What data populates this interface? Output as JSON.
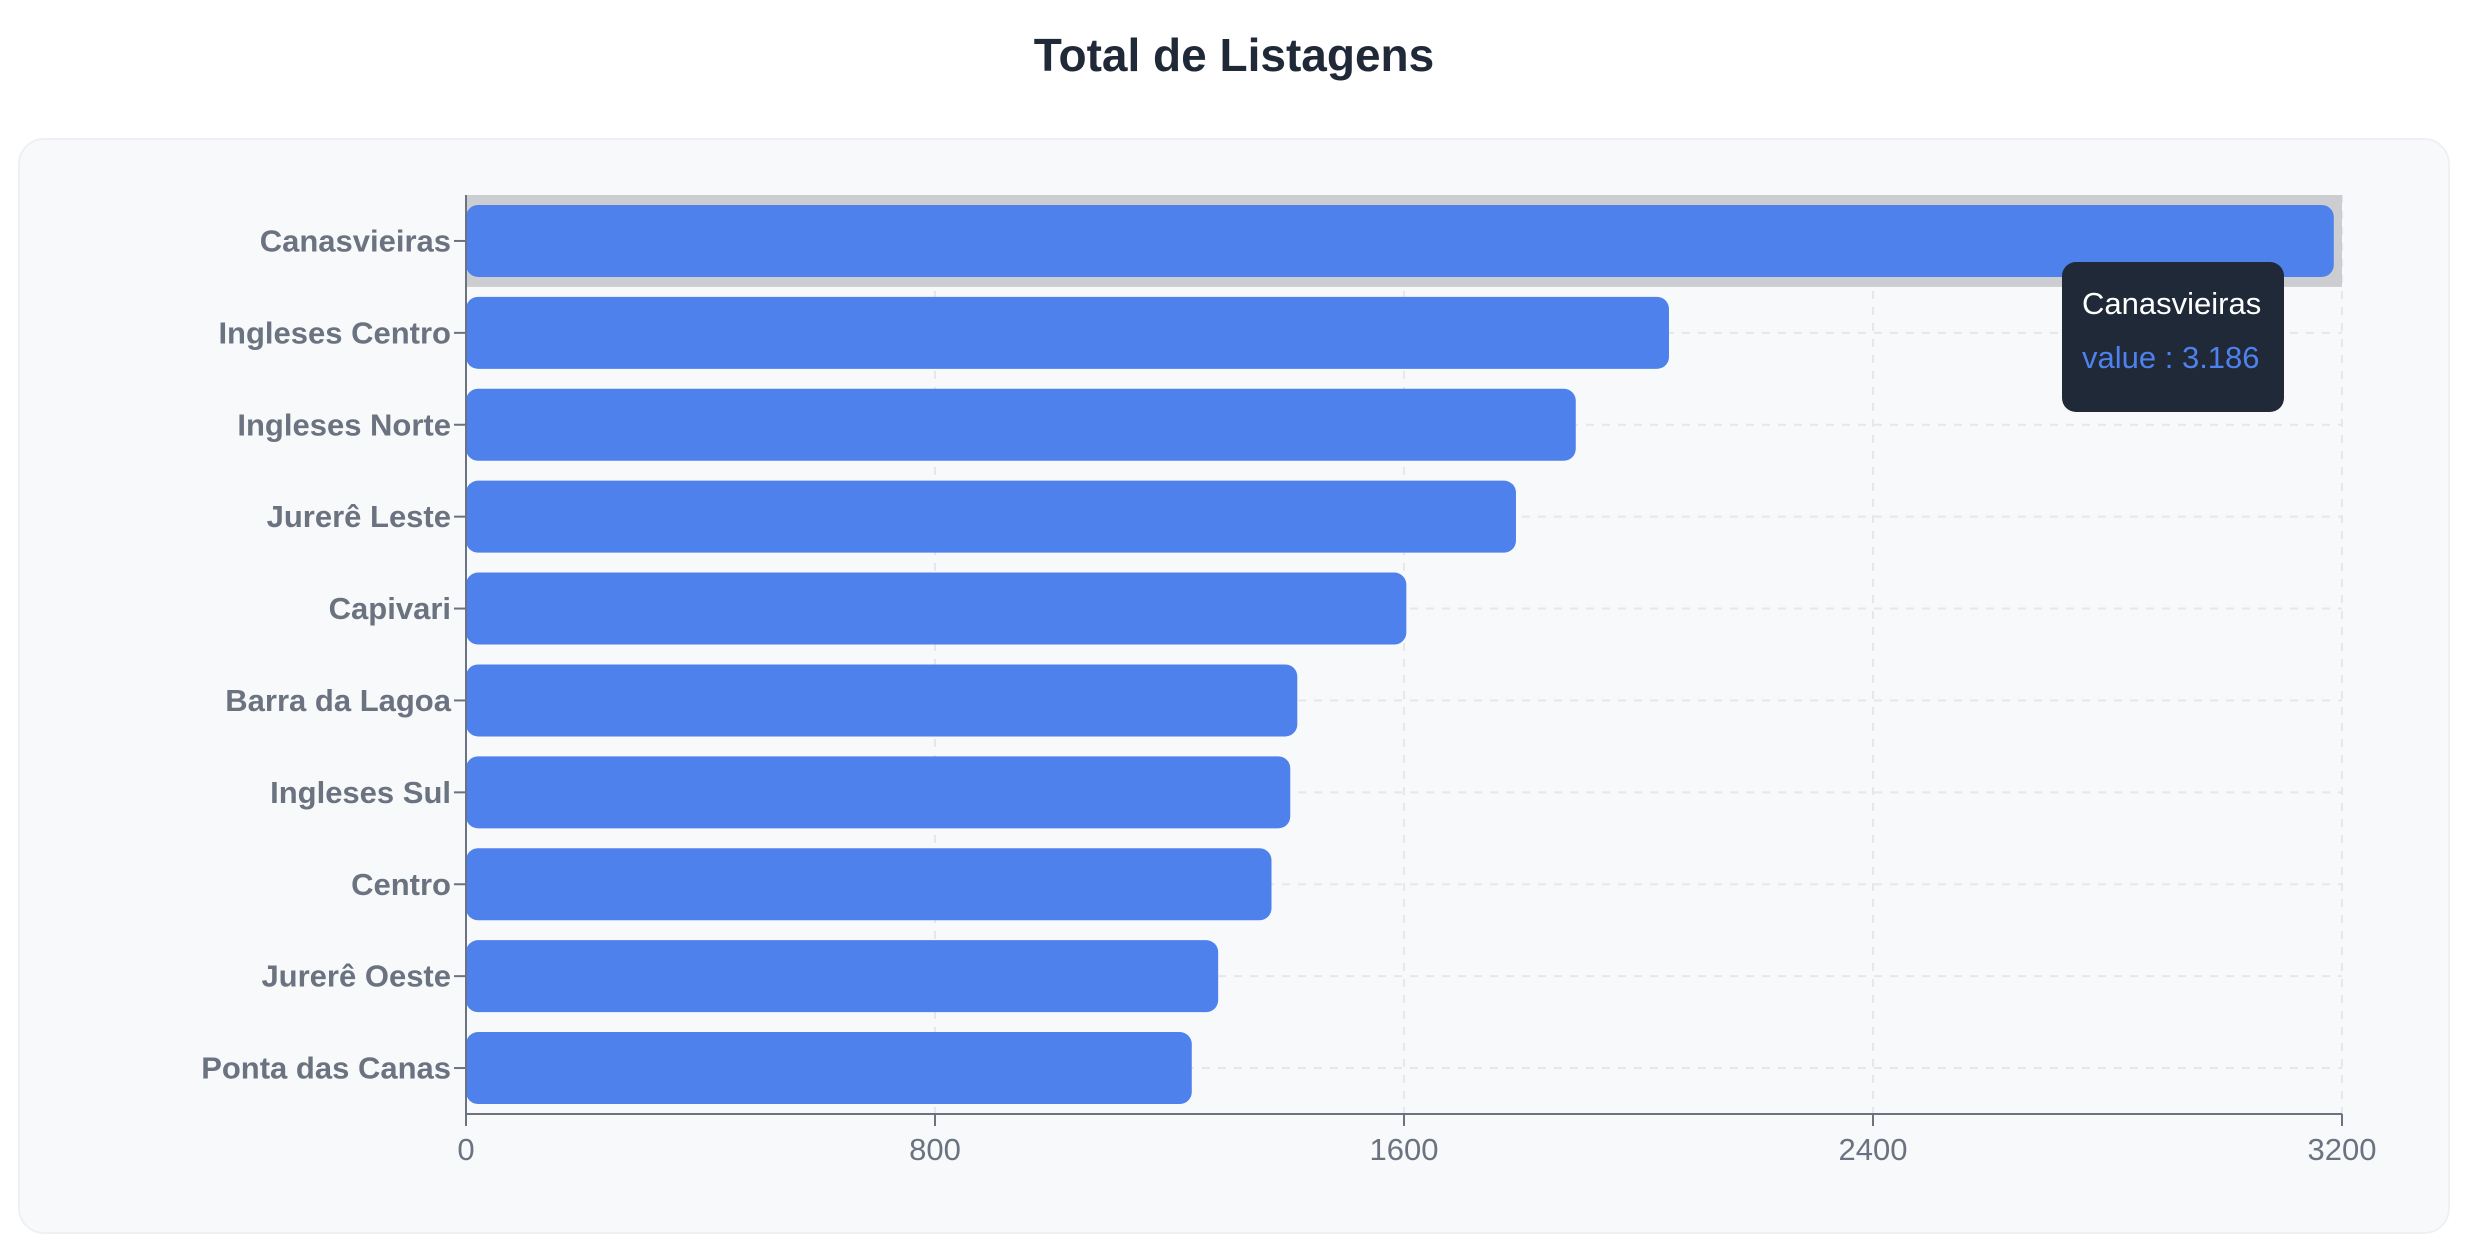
{
  "title": "Total de Listagens",
  "colors": {
    "bar": "#4f81ec",
    "highlight": "#cbcdd0",
    "axis": "#6b7280",
    "grid": "#e5e7eb",
    "tooltip_bg": "#1f2937"
  },
  "chart_data": {
    "type": "bar",
    "orientation": "horizontal",
    "title": "Total de Listagens",
    "categories": [
      "Canasvieiras",
      "Ingleses Centro",
      "Ingleses Norte",
      "Jurerê Leste",
      "Capivari",
      "Barra da Lagoa",
      "Ingleses Sul",
      "Centro",
      "Jurerê Oeste",
      "Ponta das Canas"
    ],
    "values": [
      3186,
      2052,
      1893,
      1791,
      1604,
      1418,
      1406,
      1374,
      1283,
      1238
    ],
    "xlim": [
      0,
      3200
    ],
    "xticks": [
      "0",
      "800",
      "1600",
      "2400",
      "3200"
    ],
    "xtick_values": [
      0,
      800,
      1600,
      2400,
      3200
    ],
    "grid": true,
    "highlighted_category": "Canasvieiras"
  },
  "tooltip": {
    "title": "Canasvieiras",
    "value_text": "value : 3.186"
  }
}
